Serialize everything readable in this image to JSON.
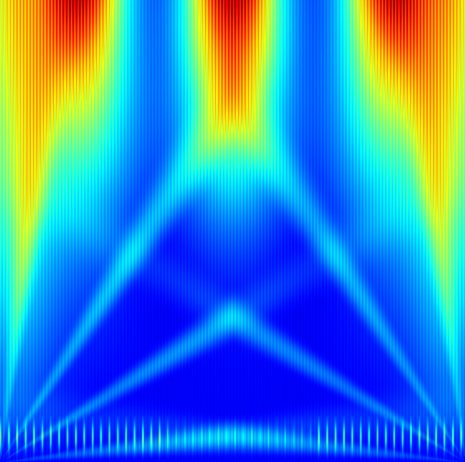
{
  "image": {
    "kind": "false-color intensity map (jet colormap)",
    "colormap": {
      "name": "jet",
      "stops": [
        "#00008f",
        "#0000ff",
        "#0080ff",
        "#00ffff",
        "#80ff80",
        "#ffff00",
        "#ff8000",
        "#ff0000",
        "#800000"
      ]
    },
    "background_color": "#00008f"
  }
}
